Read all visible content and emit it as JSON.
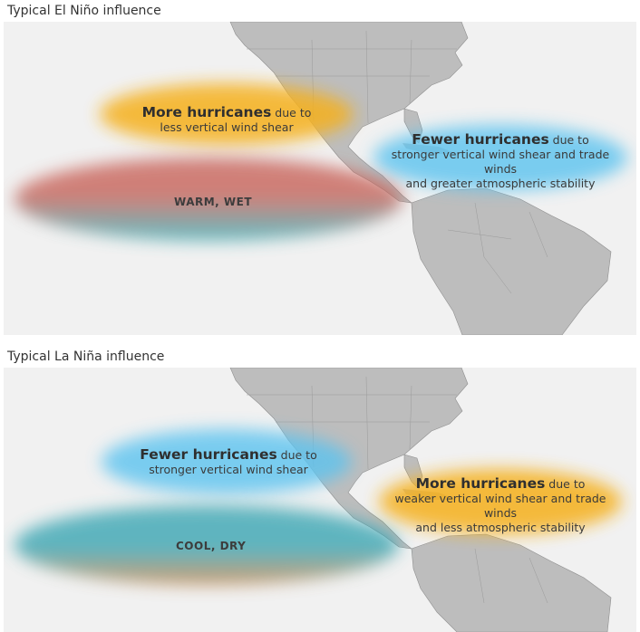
{
  "panels": [
    {
      "title": "Typical El Niño influence",
      "left_blob": {
        "headline": "More hurricanes",
        "suffix": " due to",
        "line2": "less vertical wind shear",
        "color": "#f5b01e"
      },
      "right_blob": {
        "headline": "Fewer hurricanes",
        "suffix": " due to",
        "line2": "stronger vertical wind shear and trade winds",
        "line3": "and greater atmospheric stability",
        "color": "#5bc3ef"
      },
      "ocean_zone": {
        "label": "WARM, WET",
        "top_color": "#c8645a",
        "bottom_color": "#3bb0b8"
      }
    },
    {
      "title": "Typical La Niña influence",
      "left_blob": {
        "headline": "Fewer hurricanes",
        "suffix": " due to",
        "line2": "stronger vertical wind shear",
        "color": "#5bc3ef"
      },
      "right_blob": {
        "headline": "More hurricanes",
        "suffix": " due to",
        "line2": "weaker vertical wind shear and trade winds",
        "line3": "and less atmospheric stability",
        "color": "#f5b01e"
      },
      "ocean_zone": {
        "label": "COOL, DRY",
        "top_color": "#3ba6b3",
        "bottom_color": "#c8864a"
      }
    }
  ]
}
